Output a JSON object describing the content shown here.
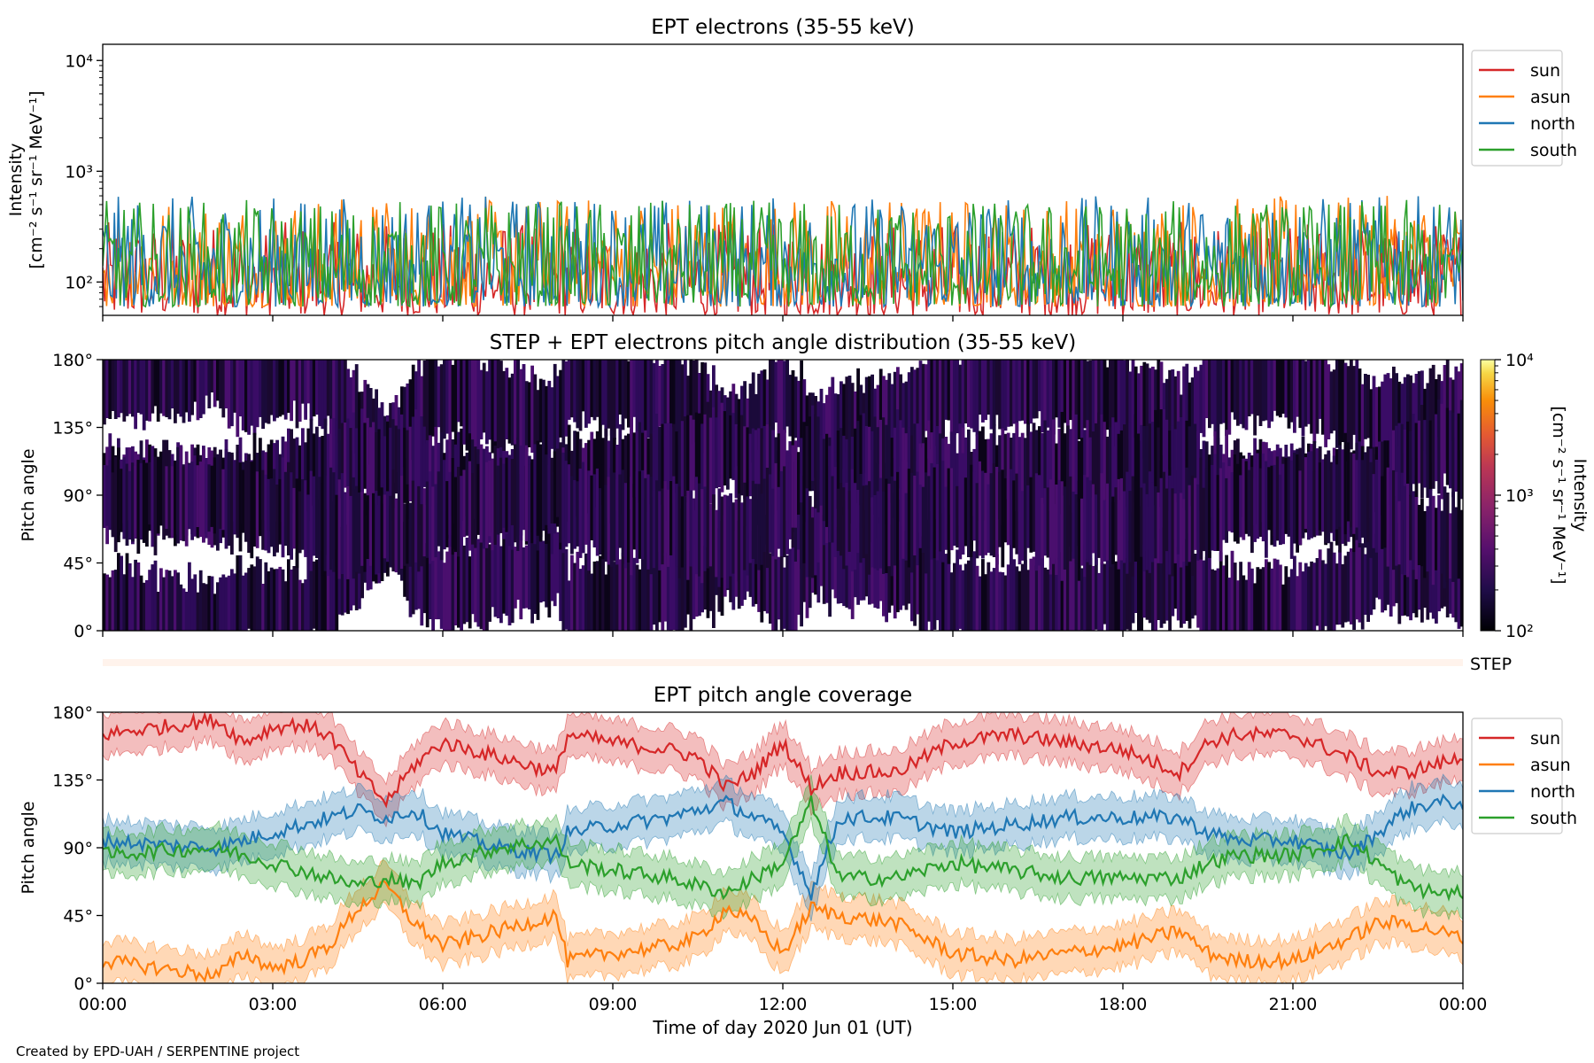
{
  "footer": "Created by EPD-UAH / SERPENTINE project",
  "xaxis": {
    "label": "Time of day 2020 Jun 01 (UT)",
    "ticks": [
      "00:00",
      "03:00",
      "06:00",
      "09:00",
      "12:00",
      "15:00",
      "18:00",
      "21:00",
      "00:00"
    ],
    "range_hours": [
      0,
      24
    ]
  },
  "chart_data": [
    {
      "type": "line",
      "title": "EPT electrons (35-55 keV)",
      "ylabel": "Intensity",
      "ylabel_units": "[cm⁻² s⁻¹ sr⁻¹ MeV⁻¹]",
      "yscale": "log",
      "ylim": [
        50,
        14000
      ],
      "yticks": [
        100,
        1000,
        10000
      ],
      "ytick_labels": [
        "10²",
        "10³",
        "10⁴"
      ],
      "legend_position": "right-outside-top",
      "series": [
        {
          "name": "sun",
          "color": "#d62728",
          "typical_range": [
            50,
            350
          ]
        },
        {
          "name": "asun",
          "color": "#ff7f0e",
          "typical_range": [
            60,
            600
          ]
        },
        {
          "name": "north",
          "color": "#1f77b4",
          "typical_range": [
            60,
            600
          ]
        },
        {
          "name": "south",
          "color": "#2ca02c",
          "typical_range": [
            60,
            550
          ]
        }
      ]
    },
    {
      "type": "heatmap",
      "title": "STEP + EPT electrons pitch angle distribution (35-55 keV)",
      "ylabel": "Pitch angle",
      "ylim": [
        0,
        180
      ],
      "yticks": [
        0,
        45,
        90,
        135,
        180
      ],
      "ytick_labels": [
        "0°",
        "45°",
        "90°",
        "135°",
        "180°"
      ],
      "colorbar": {
        "label": "Intensity",
        "units": "[cm⁻² s⁻¹ sr⁻¹ MeV⁻¹]",
        "scale": "log",
        "range": [
          100,
          10000
        ],
        "tick_labels": [
          "10²",
          "10³",
          "10⁴"
        ],
        "colormap": "inferno"
      },
      "step_strip_label": "STEP"
    },
    {
      "type": "line",
      "title": "EPT pitch angle coverage",
      "ylabel": "Pitch angle",
      "ylim": [
        0,
        180
      ],
      "yticks": [
        0,
        45,
        90,
        135,
        180
      ],
      "ytick_labels": [
        "0°",
        "45°",
        "90°",
        "135°",
        "180°"
      ],
      "legend_position": "right-outside-top",
      "x_hours": [
        0,
        1,
        2,
        2.5,
        3,
        3.5,
        4,
        4.5,
        5,
        5.5,
        6,
        7,
        8,
        8.2,
        9,
        10,
        10.5,
        11,
        11.5,
        12,
        12.5,
        13,
        14,
        15,
        16,
        17,
        18,
        19,
        19.5,
        20,
        21,
        22,
        22.5,
        23,
        23.5,
        24
      ],
      "series": [
        {
          "name": "sun",
          "color": "#d62728",
          "values": [
            165,
            170,
            175,
            160,
            170,
            172,
            165,
            140,
            120,
            145,
            160,
            150,
            140,
            165,
            160,
            155,
            150,
            130,
            140,
            160,
            130,
            140,
            140,
            160,
            165,
            160,
            155,
            140,
            160,
            165,
            165,
            150,
            140,
            140,
            145,
            150
          ]
        },
        {
          "name": "asun",
          "color": "#ff7f0e",
          "values": [
            15,
            10,
            5,
            20,
            10,
            15,
            25,
            50,
            65,
            40,
            25,
            35,
            45,
            15,
            20,
            25,
            30,
            50,
            40,
            20,
            50,
            45,
            40,
            20,
            15,
            20,
            25,
            35,
            20,
            15,
            15,
            30,
            40,
            40,
            35,
            30
          ]
        },
        {
          "name": "north",
          "color": "#1f77b4",
          "values": [
            95,
            92,
            90,
            95,
            100,
            105,
            110,
            115,
            110,
            115,
            100,
            90,
            85,
            100,
            105,
            110,
            115,
            120,
            110,
            100,
            60,
            110,
            110,
            100,
            105,
            110,
            110,
            110,
            100,
            95,
            95,
            85,
            100,
            115,
            120,
            120
          ]
        },
        {
          "name": "south",
          "color": "#2ca02c",
          "values": [
            85,
            88,
            90,
            85,
            80,
            75,
            70,
            65,
            70,
            65,
            80,
            90,
            95,
            80,
            75,
            70,
            65,
            60,
            70,
            80,
            120,
            70,
            70,
            80,
            75,
            70,
            70,
            70,
            80,
            85,
            85,
            95,
            80,
            65,
            60,
            60
          ]
        }
      ]
    }
  ]
}
